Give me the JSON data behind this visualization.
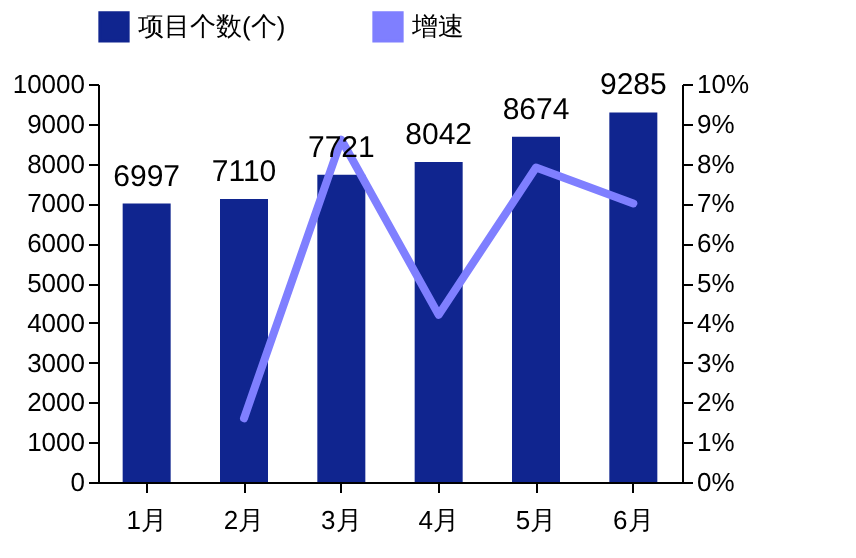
{
  "chart_data": {
    "type": "bar",
    "categories": [
      "1月",
      "2月",
      "3月",
      "4月",
      "5月",
      "6月"
    ],
    "series": [
      {
        "name": "项目个数(个)",
        "color": "#10258f",
        "values": [
          6997,
          7110,
          7721,
          8042,
          8674,
          9285
        ],
        "value_labels": [
          "6997",
          "7110",
          "7721",
          "8042",
          "8674",
          "9285"
        ]
      },
      {
        "name": "增速",
        "type": "line",
        "axis": "y2",
        "color": "#7f7fff",
        "values": [
          null,
          1.6,
          8.6,
          4.2,
          7.9,
          7.0
        ]
      }
    ],
    "ylim": [
      0,
      10000
    ],
    "yticks": [
      0,
      1000,
      2000,
      3000,
      4000,
      5000,
      6000,
      7000,
      8000,
      9000,
      10000
    ],
    "y2lim": [
      0,
      10
    ],
    "y2ticks": [
      {
        "value": 0,
        "label": "0%"
      },
      {
        "value": 1,
        "label": "1%"
      },
      {
        "value": 2,
        "label": "2%"
      },
      {
        "value": 3,
        "label": "3%"
      },
      {
        "value": 4,
        "label": "4%"
      },
      {
        "value": 5,
        "label": "5%"
      },
      {
        "value": 6,
        "label": "6%"
      },
      {
        "value": 7,
        "label": "7%"
      },
      {
        "value": 8,
        "label": "8%"
      },
      {
        "value": 9,
        "label": "9%"
      },
      {
        "value": 10,
        "label": "10%"
      }
    ],
    "legend": "top",
    "grid": false
  }
}
